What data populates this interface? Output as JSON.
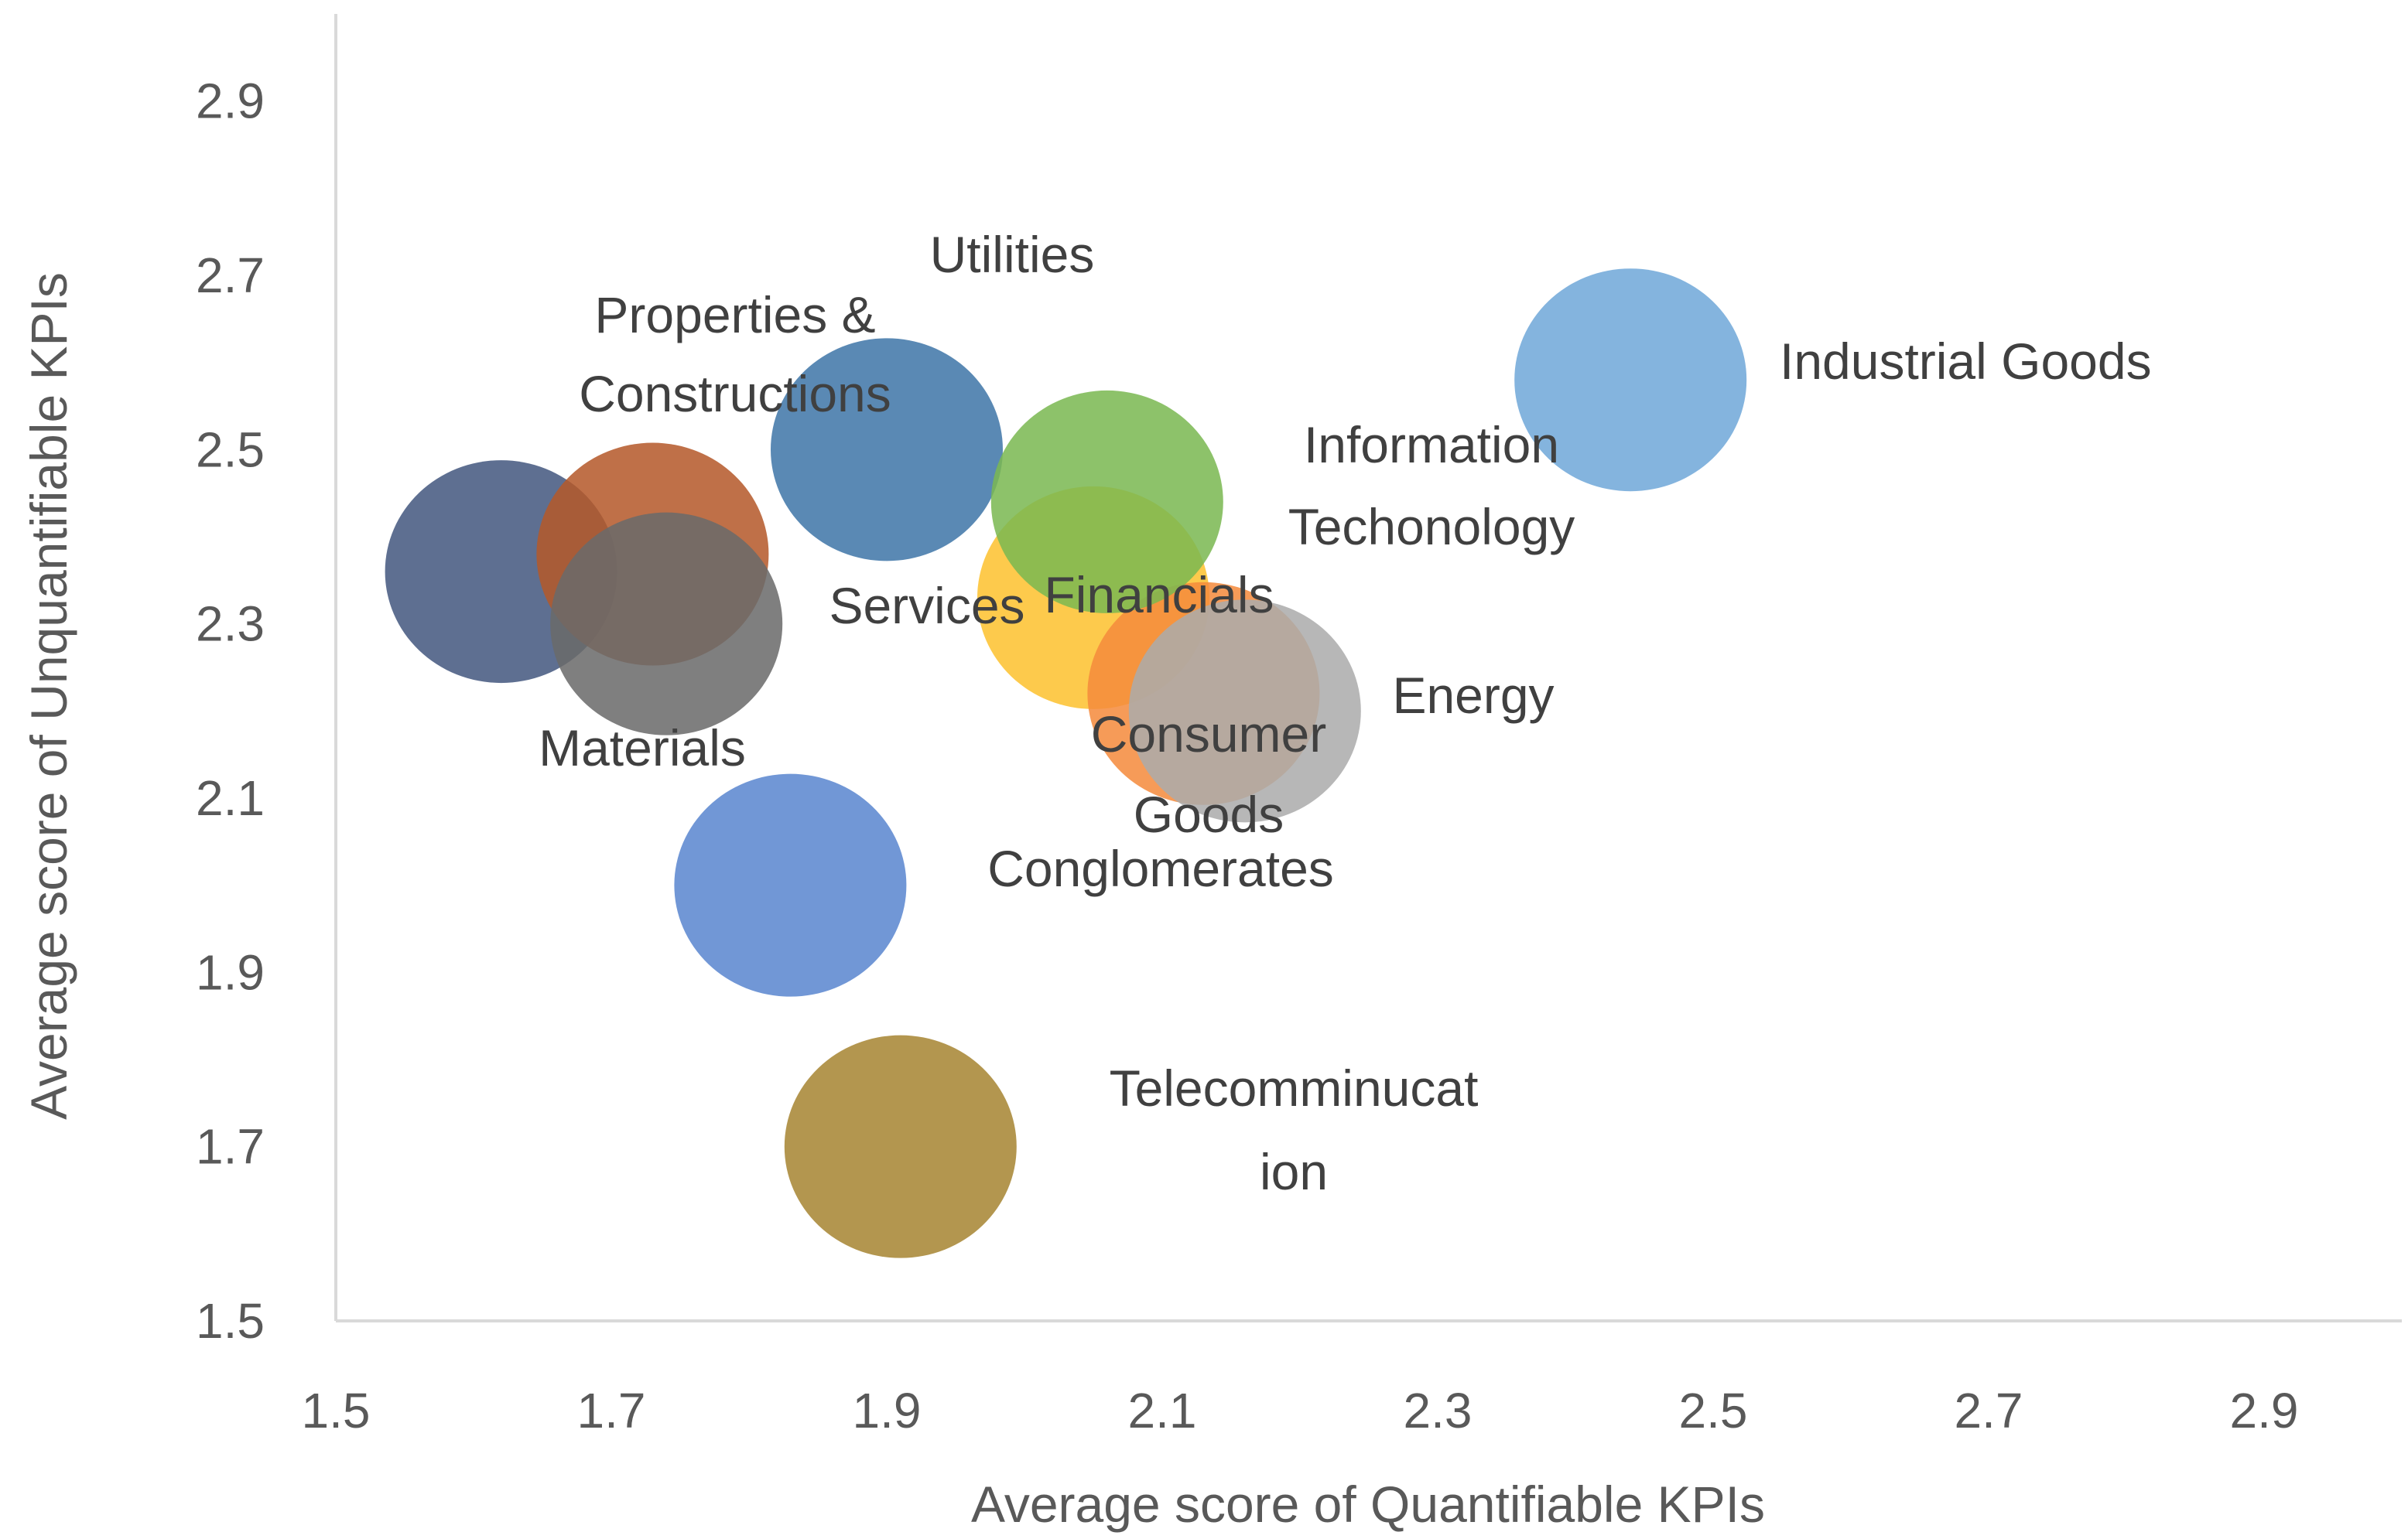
{
  "chart_data": {
    "type": "bubble",
    "title": "",
    "xlabel": "Average score of Quantifiable KPIs",
    "ylabel": "Average score of Unquantifiable KPIs",
    "xlim": [
      1.5,
      3.0
    ],
    "ylim": [
      1.5,
      3.0
    ],
    "x_ticks": [
      "1.5",
      "1.7",
      "1.9",
      "2.1",
      "2.3",
      "2.5",
      "2.7",
      "2.9"
    ],
    "y_ticks": [
      "1.5",
      "1.7",
      "1.9",
      "2.1",
      "2.3",
      "2.5",
      "2.7",
      "2.9"
    ],
    "grid": false,
    "legend": "none",
    "points": [
      {
        "label": "",
        "x": 1.62,
        "y": 2.36,
        "color": "#44577f"
      },
      {
        "label": "Properties & Constructions",
        "x": 1.73,
        "y": 2.38,
        "color": "#b5582a"
      },
      {
        "label": "Materials",
        "x": 1.74,
        "y": 2.3,
        "color": "#6a6a6a"
      },
      {
        "label": "Utilities",
        "x": 1.9,
        "y": 2.5,
        "color": "#3f76a8"
      },
      {
        "label": "Conglomerates",
        "x": 1.83,
        "y": 2.0,
        "color": "#5a86cf"
      },
      {
        "label": "Telecomminucation",
        "x": 1.91,
        "y": 1.7,
        "color": "#a68532"
      },
      {
        "label": "Services",
        "x": 2.05,
        "y": 2.33,
        "color": "#fdc12f"
      },
      {
        "label": "Consumer Goods",
        "x": 2.13,
        "y": 2.22,
        "color": "#f58b3c"
      },
      {
        "label": "Energy",
        "x": 2.16,
        "y": 2.2,
        "color": "#ababab"
      },
      {
        "label": "Information Techonology",
        "x": 2.06,
        "y": 2.44,
        "color": "#7ab852"
      },
      {
        "label": "Financials",
        "x": 2.1,
        "y": 2.3,
        "color": ""
      },
      {
        "label": "Industrial Goods",
        "x": 2.44,
        "y": 2.58,
        "color": "#70a8d9"
      }
    ]
  }
}
